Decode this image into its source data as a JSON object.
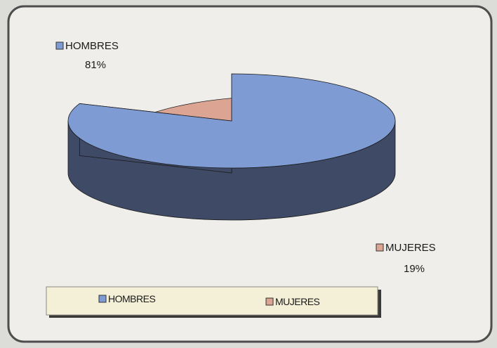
{
  "chart_data": {
    "type": "pie",
    "style": "3d-exploded",
    "categories": [
      "HOMBRES",
      "MUJERES"
    ],
    "values": [
      81,
      19
    ],
    "unit": "%",
    "data_labels": [
      {
        "name": "HOMBRES",
        "value": "81%"
      },
      {
        "name": "MUJERES",
        "value": "19%"
      }
    ],
    "legend": {
      "placement": "bottom",
      "entries": [
        "HOMBRES",
        "MUJERES"
      ]
    },
    "colors": {
      "HOMBRES": "#7e9bd3",
      "HOMBRES_side": "#3e4a66",
      "MUJERES": "#dca593",
      "MUJERES_side": "#6b3332",
      "panel": "#efeeea",
      "legend_box": "#f4f0d8"
    }
  }
}
